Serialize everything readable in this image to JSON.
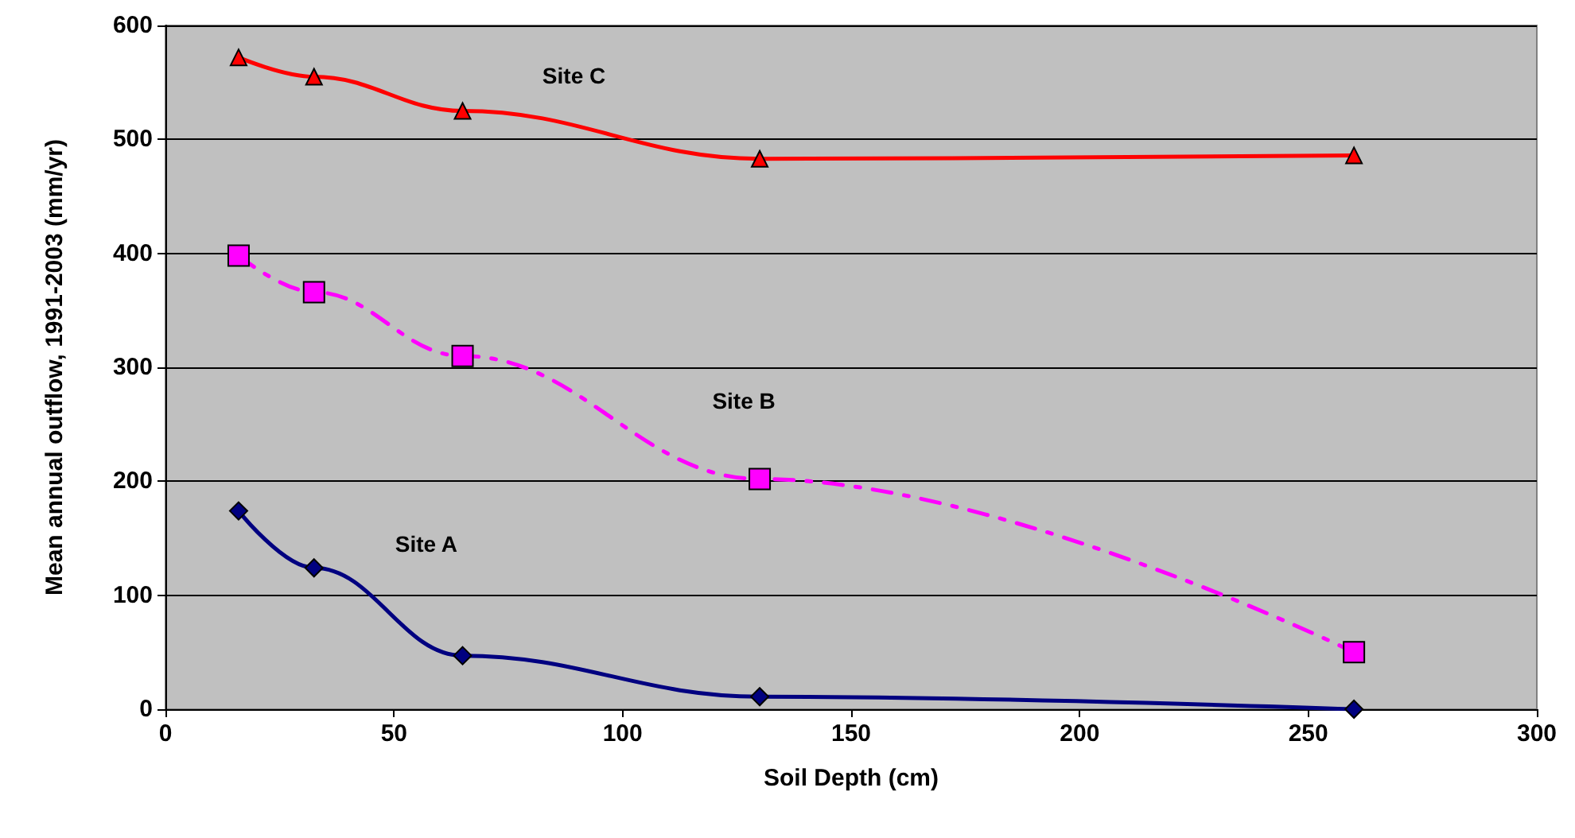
{
  "chart_data": {
    "type": "line",
    "xlabel": "Soil Depth (cm)",
    "ylabel": "Mean annual outflow, 1991-2003 (mm/yr)",
    "x": [
      16,
      32.5,
      65,
      130,
      260
    ],
    "xlim": [
      0,
      300
    ],
    "xticks": [
      0,
      50,
      100,
      150,
      200,
      250,
      300
    ],
    "ylim": [
      0,
      600
    ],
    "yticks": [
      0,
      100,
      200,
      300,
      400,
      500,
      600
    ],
    "grid": "y",
    "legend": false,
    "series": [
      {
        "name": "Site C",
        "color": "#ff0000",
        "marker": "triangle",
        "line_style": "solid",
        "values": [
          572,
          555,
          525,
          483,
          486
        ]
      },
      {
        "name": "Site B",
        "color": "#ff00ff",
        "marker": "square",
        "line_style": "dashed",
        "values": [
          398,
          366,
          310,
          202,
          50
        ]
      },
      {
        "name": "Site A",
        "color": "#000080",
        "marker": "diamond",
        "line_style": "solid",
        "values": [
          174,
          124,
          47,
          11,
          0
        ]
      }
    ]
  }
}
